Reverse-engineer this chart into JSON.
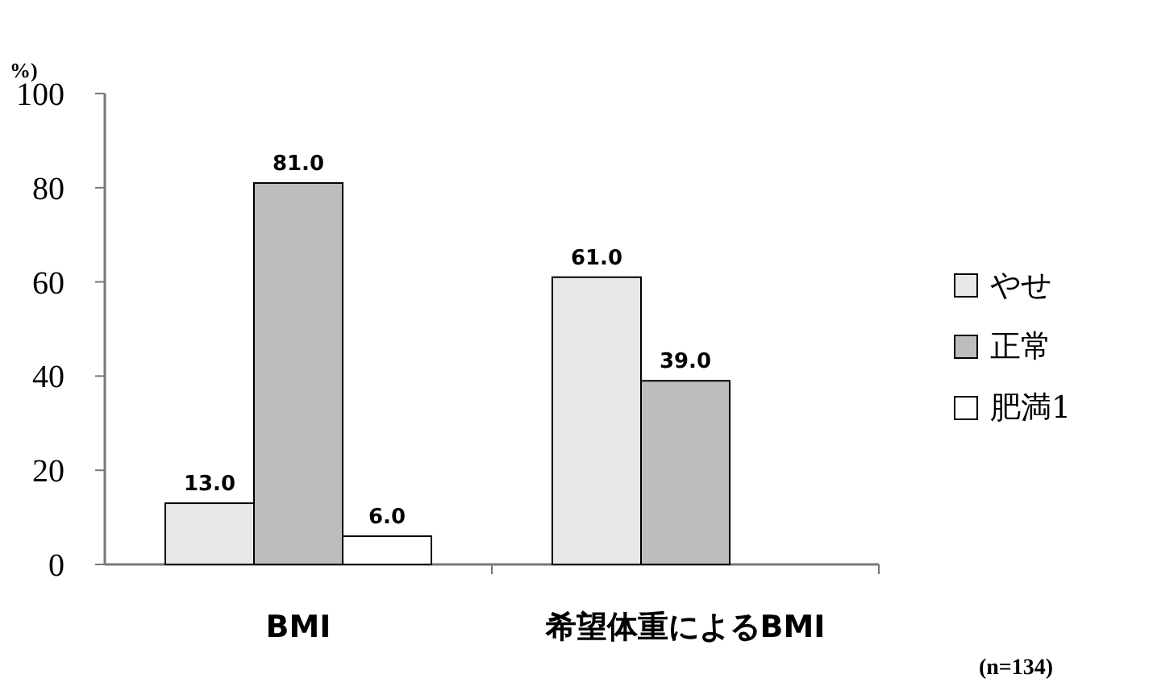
{
  "chart_data": {
    "type": "bar",
    "ylabel": "%)",
    "categories": [
      "BMI",
      "希望体重によるBMI"
    ],
    "series": [
      {
        "name": "やせ",
        "color": "#e8e8e8",
        "values": [
          13.0,
          61.0
        ],
        "value_labels": [
          "13.0",
          "61.0"
        ]
      },
      {
        "name": "正常",
        "color": "#bdbdbd",
        "values": [
          81.0,
          39.0
        ],
        "value_labels": [
          "81.0",
          "39.0"
        ]
      },
      {
        "name": "肥満1",
        "color": "#ffffff",
        "values": [
          6.0,
          0.0
        ],
        "value_labels": [
          "6.0",
          null
        ]
      }
    ],
    "ylim": [
      0,
      100
    ],
    "yticks": [
      0,
      20,
      40,
      60,
      80,
      100
    ],
    "legend": "right",
    "grid": false,
    "annotations": [
      "(n=134)"
    ]
  }
}
